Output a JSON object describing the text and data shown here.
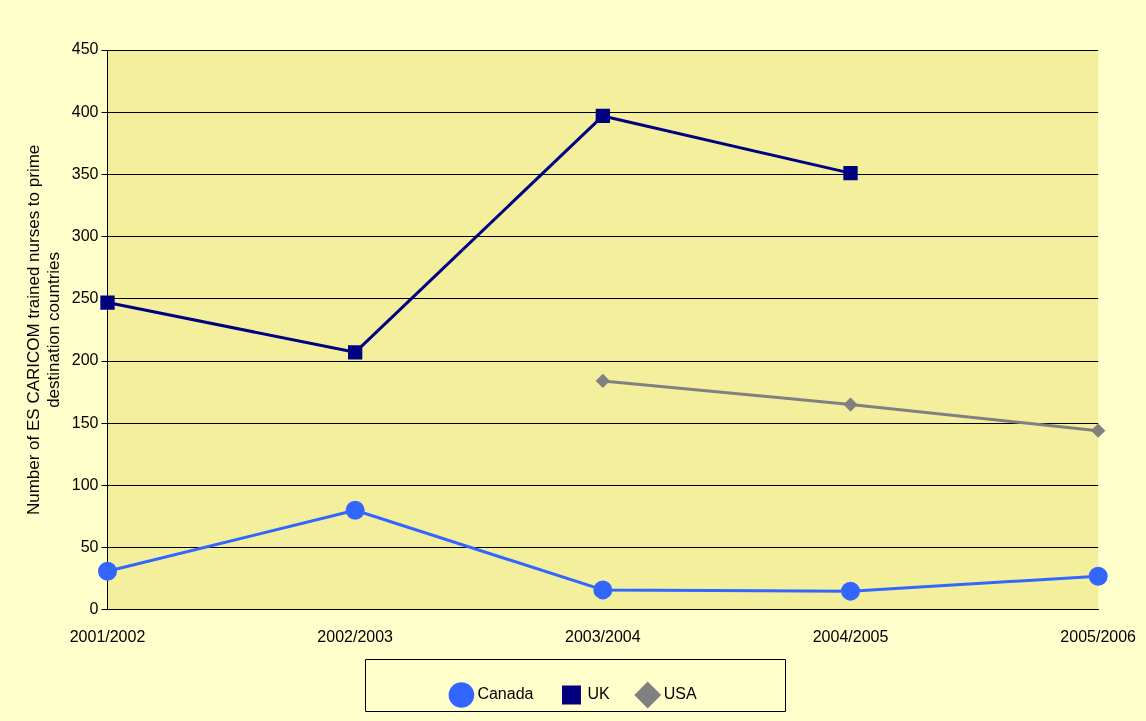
{
  "chart_data": {
    "type": "line",
    "ylabel": "Number of ES CARICOM trained nurses to prime destination countries",
    "categories": [
      "2001/2002",
      "2002/2003",
      "2003/2004",
      "2004/2005",
      "2005/2006"
    ],
    "series": [
      {
        "name": "Canada",
        "color": "#3366ff",
        "marker": "circle",
        "values": [
          31,
          80,
          16,
          15,
          27
        ]
      },
      {
        "name": "UK",
        "color": "#000080",
        "marker": "square",
        "values": [
          247,
          207,
          397,
          351,
          null
        ]
      },
      {
        "name": "USA",
        "color": "#808080",
        "marker": "diamond",
        "values": [
          null,
          null,
          184,
          165,
          144
        ]
      }
    ],
    "ylim": [
      0,
      450
    ],
    "yticks": [
      0,
      50,
      100,
      150,
      200,
      250,
      300,
      350,
      400,
      450
    ],
    "grid": "y",
    "legend": "bottom",
    "line_style": "solid"
  }
}
